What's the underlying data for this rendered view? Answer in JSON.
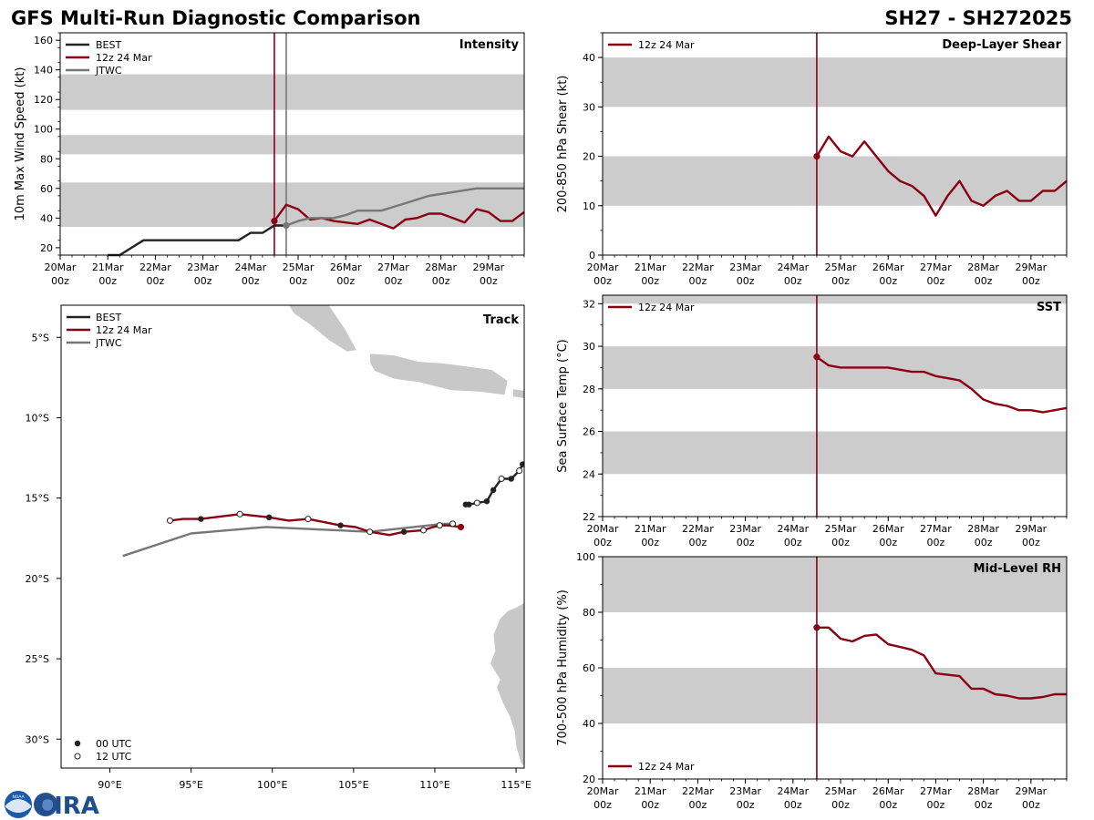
{
  "header": {
    "title_left": "GFS Multi-Run Diagnostic Comparison",
    "title_right": "SH27 - SH272025"
  },
  "colors": {
    "best": "#222222",
    "run": "#8b0012",
    "jtwc": "#777777",
    "band": "#cccccc",
    "land": "#c8c8c8"
  },
  "logo": {
    "noaa_badge": "NOAA",
    "text": "CIRA"
  },
  "chart_data": [
    {
      "id": "intensity",
      "type": "line",
      "title": "Intensity",
      "xlabel": "",
      "ylabel": "10m Max Wind Speed (kt)",
      "ylim": [
        15,
        165
      ],
      "xlim": [
        0,
        9.75
      ],
      "yticks": [
        20,
        40,
        60,
        80,
        100,
        120,
        140,
        160
      ],
      "ytick_labels": [
        "20",
        "40",
        "60",
        "80",
        "100",
        "120",
        "140",
        "160"
      ],
      "xticks": [
        0,
        1,
        2,
        3,
        4,
        5,
        6,
        7,
        8,
        9
      ],
      "xtick_labels": [
        "20Mar\n00z",
        "21Mar\n00z",
        "22Mar\n00z",
        "23Mar\n00z",
        "24Mar\n00z",
        "25Mar\n00z",
        "26Mar\n00z",
        "27Mar\n00z",
        "28Mar\n00z",
        "29Mar\n00z"
      ],
      "bands": [
        [
          34,
          64
        ],
        [
          83,
          96
        ],
        [
          113,
          137
        ]
      ],
      "vlines": [
        {
          "x": 4.5,
          "series": "run"
        },
        {
          "x": 4.75,
          "series": "jtwc"
        }
      ],
      "legend": {
        "position": "top-left",
        "entries": [
          "BEST",
          "12z 24 Mar",
          "JTWC"
        ]
      },
      "series": [
        {
          "name": "BEST",
          "key": "best",
          "x": [
            1.0,
            1.25,
            1.75,
            2.0,
            2.25,
            2.5,
            2.75,
            3.0,
            3.25,
            3.5,
            3.75,
            4.0,
            4.25,
            4.5,
            4.75
          ],
          "y": [
            15,
            15,
            25,
            25,
            25,
            25,
            25,
            25,
            25,
            25,
            25,
            30,
            30,
            35,
            35
          ]
        },
        {
          "name": "12z 24 Mar",
          "key": "run",
          "x": [
            4.5,
            4.75,
            5.0,
            5.25,
            5.5,
            5.75,
            6.0,
            6.25,
            6.5,
            6.75,
            7.0,
            7.25,
            7.5,
            7.75,
            8.0,
            8.25,
            8.5,
            8.75,
            9.0,
            9.25,
            9.5,
            9.75
          ],
          "y": [
            38,
            49,
            46,
            39,
            40,
            38,
            37,
            36,
            39,
            36,
            33,
            39,
            40,
            43,
            43,
            40,
            37,
            46,
            44,
            38,
            38,
            44
          ],
          "start_marker": true
        },
        {
          "name": "JTWC",
          "key": "jtwc",
          "x": [
            4.75,
            5.0,
            5.25,
            5.5,
            5.75,
            6.0,
            6.25,
            6.5,
            6.75,
            7.0,
            7.25,
            7.5,
            7.75,
            8.0,
            8.25,
            8.5,
            8.75,
            9.0,
            9.25,
            9.5,
            9.75
          ],
          "y": [
            35,
            38,
            40,
            40,
            40,
            42,
            45,
            45,
            45,
            47.5,
            50,
            52.5,
            55,
            56.25,
            57.5,
            58.75,
            60,
            60,
            60,
            60,
            60
          ],
          "start_marker": true
        }
      ]
    },
    {
      "id": "shear",
      "type": "line",
      "title": "Deep-Layer Shear",
      "xlabel": "",
      "ylabel": "200-850 hPa Shear (kt)",
      "ylim": [
        0,
        45
      ],
      "xlim": [
        0,
        9.75
      ],
      "yticks": [
        0,
        10,
        20,
        30,
        40
      ],
      "ytick_labels": [
        "0",
        "10",
        "20",
        "30",
        "40"
      ],
      "xticks": [
        0,
        1,
        2,
        3,
        4,
        5,
        6,
        7,
        8,
        9
      ],
      "xtick_labels": [
        "20Mar\n00z",
        "21Mar\n00z",
        "22Mar\n00z",
        "23Mar\n00z",
        "24Mar\n00z",
        "25Mar\n00z",
        "26Mar\n00z",
        "27Mar\n00z",
        "28Mar\n00z",
        "29Mar\n00z"
      ],
      "bands": [
        [
          10,
          20
        ],
        [
          30,
          40
        ]
      ],
      "vlines": [
        {
          "x": 4.5,
          "series": "run"
        }
      ],
      "legend": {
        "position": "top-left",
        "entries": [
          "12z 24 Mar"
        ]
      },
      "series": [
        {
          "name": "12z 24 Mar",
          "key": "run",
          "x": [
            4.5,
            4.75,
            5.0,
            5.25,
            5.5,
            5.75,
            6.0,
            6.25,
            6.5,
            6.75,
            7.0,
            7.25,
            7.5,
            7.75,
            8.0,
            8.25,
            8.5,
            8.75,
            9.0,
            9.25,
            9.5,
            9.75
          ],
          "y": [
            20,
            24,
            21,
            20,
            23,
            20,
            17,
            15,
            14,
            12,
            8,
            12,
            15,
            11,
            10,
            12,
            13,
            11,
            11,
            13,
            13,
            15
          ],
          "start_marker": true
        }
      ]
    },
    {
      "id": "track",
      "type": "map",
      "title": "Track",
      "xlim": [
        87,
        115.5
      ],
      "ylim": [
        -31.8,
        -3
      ],
      "xticks": [
        90,
        95,
        100,
        105,
        110,
        115
      ],
      "xtick_labels": [
        "90°E",
        "95°E",
        "100°E",
        "105°E",
        "110°E",
        "115°E"
      ],
      "yticks": [
        -5,
        -10,
        -15,
        -20,
        -25,
        -30
      ],
      "ytick_labels": [
        "5°S",
        "10°S",
        "15°S",
        "20°S",
        "25°S",
        "30°S"
      ],
      "legend": {
        "position": "top-left",
        "entries": [
          "BEST",
          "12z 24 Mar",
          "JTWC"
        ]
      },
      "marker_legend": {
        "position": "bottom-left",
        "entries": [
          "00 UTC",
          "12 UTC"
        ]
      },
      "series": [
        {
          "name": "BEST",
          "key": "best",
          "lon": [
            115.4,
            115.2,
            114.7,
            114.1,
            113.6,
            113.2,
            112.6,
            112.1,
            111.9
          ],
          "lat": [
            -12.9,
            -13.3,
            -13.8,
            -13.8,
            -14.5,
            -15.2,
            -15.3,
            -15.4,
            -15.4
          ],
          "markers": [
            "00",
            "12",
            "00",
            "12",
            "00",
            "00",
            "12",
            "00",
            "00"
          ]
        },
        {
          "name": "12z 24 Mar",
          "key": "run",
          "lon": [
            111.6,
            110.8,
            110.3,
            109.9,
            109.3,
            108.1,
            107.2,
            106.0,
            105.1,
            104.2,
            102.2,
            101.0,
            99.8,
            98.0,
            95.6,
            94.5,
            93.7
          ],
          "lat": [
            -16.8,
            -16.7,
            -16.7,
            -16.8,
            -17.0,
            -17.1,
            -17.3,
            -17.1,
            -16.8,
            -16.7,
            -16.3,
            -16.4,
            -16.2,
            -16.0,
            -16.3,
            -16.3,
            -16.4
          ],
          "markers": [
            "start",
            "",
            "12",
            "",
            "12",
            "00",
            "",
            "",
            "",
            "00",
            "12",
            "",
            "00",
            "12",
            "00",
            "",
            "12"
          ]
        },
        {
          "name": "JTWC",
          "key": "jtwc",
          "lon": [
            111.1,
            110.5,
            106.0,
            99.6,
            95.0,
            90.8
          ],
          "lat": [
            -16.6,
            -16.6,
            -17.1,
            -16.8,
            -17.2,
            -18.6
          ],
          "markers": [
            "12",
            "",
            "12",
            "",
            "",
            ""
          ]
        }
      ]
    },
    {
      "id": "sst",
      "type": "line",
      "title": "SST",
      "xlabel": "",
      "ylabel": "Sea Surface Temp (°C)",
      "ylim": [
        22,
        32.4
      ],
      "xlim": [
        0,
        9.75
      ],
      "yticks": [
        22,
        24,
        26,
        28,
        30,
        32
      ],
      "ytick_labels": [
        "22",
        "24",
        "26",
        "28",
        "30",
        "32"
      ],
      "xticks": [
        0,
        1,
        2,
        3,
        4,
        5,
        6,
        7,
        8,
        9
      ],
      "xtick_labels": [
        "20Mar\n00z",
        "21Mar\n00z",
        "22Mar\n00z",
        "23Mar\n00z",
        "24Mar\n00z",
        "25Mar\n00z",
        "26Mar\n00z",
        "27Mar\n00z",
        "28Mar\n00z",
        "29Mar\n00z"
      ],
      "bands": [
        [
          24,
          26
        ],
        [
          28,
          30
        ],
        [
          32,
          32.4
        ]
      ],
      "vlines": [
        {
          "x": 4.5,
          "series": "run"
        }
      ],
      "legend": {
        "position": "top-left",
        "entries": [
          "12z 24 Mar"
        ]
      },
      "series": [
        {
          "name": "12z 24 Mar",
          "key": "run",
          "x": [
            4.5,
            4.75,
            5.0,
            5.25,
            5.5,
            5.75,
            6.0,
            6.25,
            6.5,
            6.75,
            7.0,
            7.25,
            7.5,
            7.75,
            8.0,
            8.25,
            8.5,
            8.75,
            9.0,
            9.25,
            9.5,
            9.75
          ],
          "y": [
            29.5,
            29.1,
            29.0,
            29.0,
            29.0,
            29.0,
            29.0,
            28.9,
            28.8,
            28.8,
            28.6,
            28.5,
            28.4,
            28.0,
            27.5,
            27.3,
            27.2,
            27.0,
            27.0,
            26.9,
            27.0,
            27.1
          ],
          "start_marker": true
        }
      ]
    },
    {
      "id": "rh",
      "type": "line",
      "title": "Mid-Level RH",
      "xlabel": "",
      "ylabel": "700-500 hPa Humidity (%)",
      "ylim": [
        20,
        100
      ],
      "xlim": [
        0,
        9.75
      ],
      "yticks": [
        20,
        40,
        60,
        80,
        100
      ],
      "ytick_labels": [
        "20",
        "40",
        "60",
        "80",
        "100"
      ],
      "xticks": [
        0,
        1,
        2,
        3,
        4,
        5,
        6,
        7,
        8,
        9
      ],
      "xtick_labels": [
        "20Mar\n00z",
        "21Mar\n00z",
        "22Mar\n00z",
        "23Mar\n00z",
        "24Mar\n00z",
        "25Mar\n00z",
        "26Mar\n00z",
        "27Mar\n00z",
        "28Mar\n00z",
        "29Mar\n00z"
      ],
      "bands": [
        [
          40,
          60
        ],
        [
          80,
          100
        ]
      ],
      "vlines": [
        {
          "x": 4.5,
          "series": "run"
        }
      ],
      "legend": {
        "position": "bottom-left",
        "entries": [
          "12z 24 Mar"
        ]
      },
      "series": [
        {
          "name": "12z 24 Mar",
          "key": "run",
          "x": [
            4.5,
            4.75,
            5.0,
            5.25,
            5.5,
            5.75,
            6.0,
            6.25,
            6.5,
            6.75,
            7.0,
            7.25,
            7.5,
            7.75,
            8.0,
            8.25,
            8.5,
            8.75,
            9.0,
            9.25,
            9.5,
            9.75
          ],
          "y": [
            74.5,
            74.5,
            70.5,
            69.5,
            71.5,
            72.0,
            68.5,
            67.5,
            66.5,
            64.5,
            58.0,
            57.5,
            57.0,
            52.5,
            52.5,
            50.5,
            50.0,
            49.0,
            49.0,
            49.5,
            50.5,
            50.5
          ],
          "start_marker": true
        }
      ]
    }
  ]
}
